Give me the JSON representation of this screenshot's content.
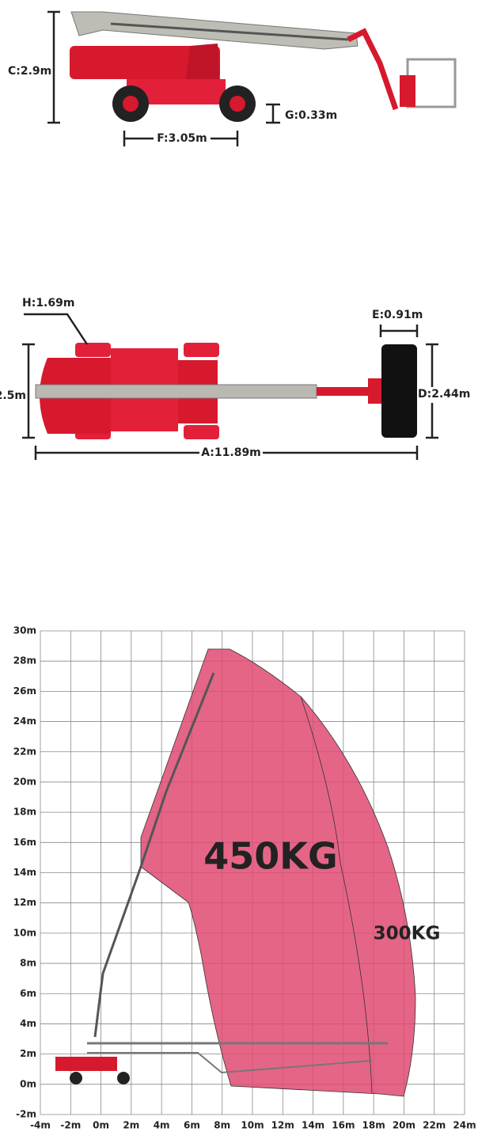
{
  "side_view": {
    "height_label": "C:2.9m",
    "ground_clearance_label": "G:0.33m",
    "wheelbase_label": "F:3.05m"
  },
  "top_view": {
    "turn_label": "H:1.69m",
    "width_label": "2.5m",
    "platform_depth_label": "E:0.91m",
    "platform_width_label": "D:2.44m",
    "length_label": "A:11.89m"
  },
  "range_chart": {
    "xlim": [
      -4,
      24
    ],
    "ylim": [
      -2,
      30
    ],
    "xticks": [
      {
        "value": -4,
        "label": "-4m"
      },
      {
        "value": -2,
        "label": "-2m"
      },
      {
        "value": 0,
        "label": "0m"
      },
      {
        "value": 2,
        "label": "2m"
      },
      {
        "value": 4,
        "label": "4m"
      },
      {
        "value": 6,
        "label": "6m"
      },
      {
        "value": 8,
        "label": "8m"
      },
      {
        "value": 10,
        "label": "10m"
      },
      {
        "value": 12,
        "label": "12m"
      },
      {
        "value": 14,
        "label": "14m"
      },
      {
        "value": 16,
        "label": "16m"
      },
      {
        "value": 18,
        "label": "18m"
      },
      {
        "value": 20,
        "label": "20m"
      },
      {
        "value": 22,
        "label": "22m"
      },
      {
        "value": 24,
        "label": "24m"
      }
    ],
    "yticks": [
      {
        "value": -2,
        "label": "-2m"
      },
      {
        "value": 0,
        "label": "0m"
      },
      {
        "value": 2,
        "label": "2m"
      },
      {
        "value": 4,
        "label": "4m"
      },
      {
        "value": 6,
        "label": "6m"
      },
      {
        "value": 8,
        "label": "8m"
      },
      {
        "value": 10,
        "label": "10m"
      },
      {
        "value": 12,
        "label": "12m"
      },
      {
        "value": 14,
        "label": "14m"
      },
      {
        "value": 16,
        "label": "16m"
      },
      {
        "value": 18,
        "label": "18m"
      },
      {
        "value": 20,
        "label": "20m"
      },
      {
        "value": 22,
        "label": "22m"
      },
      {
        "value": 24,
        "label": "24m"
      },
      {
        "value": 26,
        "label": "26m"
      },
      {
        "value": 28,
        "label": "28m"
      },
      {
        "value": 30,
        "label": "30m"
      }
    ],
    "zone_450_label": "450KG",
    "zone_300_label": "300KG"
  }
}
